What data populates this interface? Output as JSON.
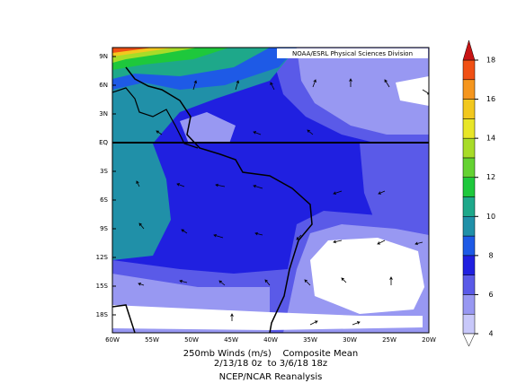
{
  "map": {
    "source": "NOAA/ESRL Physical Sciences Division",
    "lon_labels": [
      "60W",
      "55W",
      "50W",
      "45W",
      "40W",
      "35W",
      "30W",
      "25W",
      "20W"
    ],
    "lat_labels": [
      "9N",
      "6N",
      "3N",
      "EQ",
      "3S",
      "6S",
      "9S",
      "12S",
      "15S",
      "18S"
    ],
    "colorbar": {
      "ticks": [
        4,
        6,
        8,
        10,
        12,
        14,
        16,
        18
      ],
      "levels": [
        4,
        5,
        6,
        7,
        8,
        9,
        10,
        11,
        12,
        13,
        14,
        15,
        16,
        17,
        18
      ],
      "colors": [
        "#c8c8fa",
        "#9898f2",
        "#5a5ae8",
        "#2020e0",
        "#1e5ae6",
        "#2090a8",
        "#1ea88a",
        "#1ec83c",
        "#64d232",
        "#a8dc28",
        "#e8e628",
        "#f2c81e",
        "#f5961e",
        "#f05014"
      ],
      "under_color": "#ffffff",
      "over_color": "#c81414"
    },
    "caption": [
      "250mb Winds (m/s)    Composite Mean",
      "2/13/18 0z  to 3/6/18 18z",
      "NCEP/NCAR Reanalysis"
    ]
  }
}
